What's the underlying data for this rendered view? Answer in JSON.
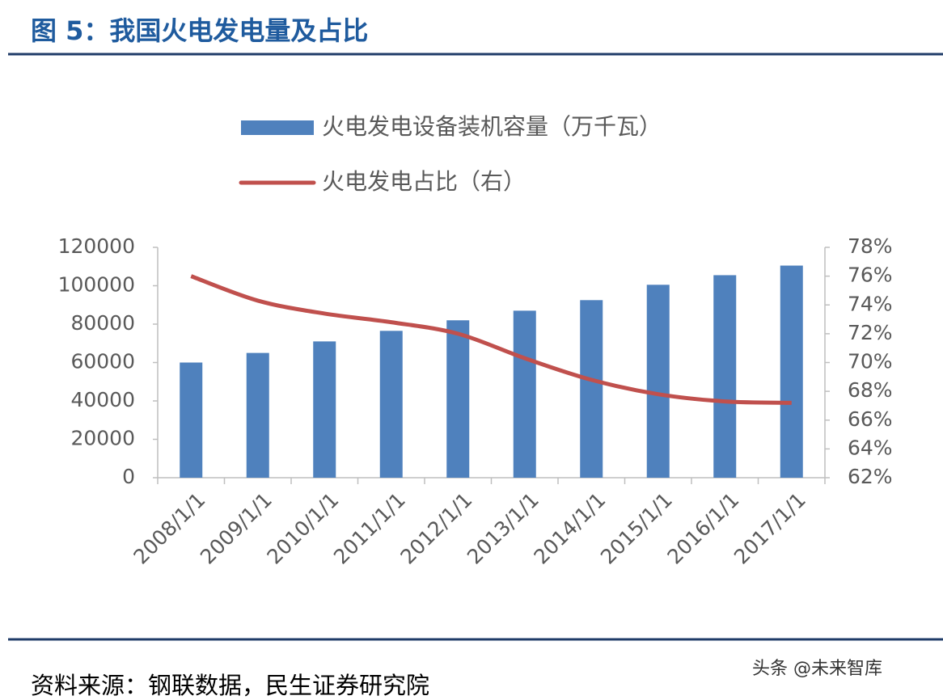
{
  "chart_data": {
    "type": "bar_line",
    "title": "图 5：我国火电发电量及占比",
    "categories": [
      "2008/1/1",
      "2009/1/1",
      "2010/1/1",
      "2011/1/1",
      "2012/1/1",
      "2013/1/1",
      "2014/1/1",
      "2015/1/1",
      "2016/1/1",
      "2017/1/1"
    ],
    "series": [
      {
        "name": "火电发电设备装机容量（万千瓦）",
        "type": "bar",
        "color": "#4f81bd",
        "values": [
          60000,
          65000,
          71000,
          76500,
          82000,
          87000,
          92500,
          100500,
          105500,
          110500
        ]
      },
      {
        "name": "火电发电占比（右）",
        "type": "line",
        "axis": "y2",
        "color": "#c0504d",
        "values": [
          76.0,
          74.3,
          73.4,
          72.8,
          72.0,
          70.3,
          68.8,
          67.8,
          67.3,
          67.2
        ]
      }
    ],
    "ylim": [
      0,
      120000
    ],
    "yticks": [
      0,
      20000,
      40000,
      60000,
      80000,
      100000,
      120000
    ],
    "y2lim": [
      62,
      78
    ],
    "y2ticks": [
      {
        "value": 62,
        "label": "62%"
      },
      {
        "value": 64,
        "label": "64%"
      },
      {
        "value": 66,
        "label": "66%"
      },
      {
        "value": 68,
        "label": "68%"
      },
      {
        "value": 70,
        "label": "70%"
      },
      {
        "value": 72,
        "label": "72%"
      },
      {
        "value": 74,
        "label": "74%"
      },
      {
        "value": 76,
        "label": "76%"
      },
      {
        "value": 78,
        "label": "78%"
      }
    ],
    "source": "资料来源：钢联数据，民生证券研究院",
    "watermark": "头条 @未来智库"
  }
}
